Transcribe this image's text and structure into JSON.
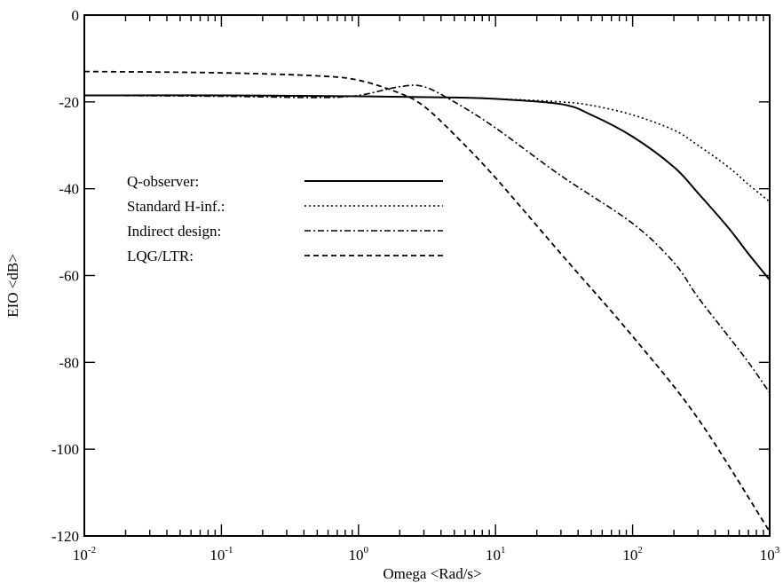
{
  "chart_data": {
    "type": "line",
    "xlabel": "Omega <Rad/s>",
    "ylabel": "EIO <dB>",
    "xscale": "log",
    "xlim": [
      0.01,
      1000
    ],
    "ylim": [
      -120,
      0
    ],
    "x_ticks": [
      {
        "base": "10",
        "exp": "-2",
        "value": 0.01
      },
      {
        "base": "10",
        "exp": "-1",
        "value": 0.1
      },
      {
        "base": "10",
        "exp": "0",
        "value": 1
      },
      {
        "base": "10",
        "exp": "1",
        "value": 10
      },
      {
        "base": "10",
        "exp": "2",
        "value": 100
      },
      {
        "base": "10",
        "exp": "3",
        "value": 1000
      }
    ],
    "y_ticks": [
      "0",
      "-20",
      "-40",
      "-60",
      "-80",
      "-100",
      "-120"
    ],
    "y_tick_values": [
      0,
      -20,
      -40,
      -60,
      -80,
      -100,
      -120
    ],
    "grid": false,
    "legend_position": "center-left",
    "series": [
      {
        "name": "Q-observer:",
        "style": "solid",
        "x": [
          0.01,
          0.1,
          1,
          5,
          10,
          30,
          50,
          100,
          200,
          300,
          500,
          700,
          1000
        ],
        "y": [
          -18.5,
          -18.5,
          -18.7,
          -19,
          -19.3,
          -20.5,
          -23,
          -28,
          -35,
          -41,
          -49,
          -55,
          -61
        ]
      },
      {
        "name": "Standard H-inf.:",
        "style": "dotted",
        "x": [
          0.01,
          0.1,
          1,
          5,
          10,
          30,
          50,
          100,
          200,
          300,
          500,
          700,
          1000
        ],
        "y": [
          -18.5,
          -18.5,
          -18.7,
          -19,
          -19.3,
          -20,
          -20.8,
          -23,
          -26.5,
          -30,
          -35,
          -39,
          -43
        ]
      },
      {
        "name": "Indirect design:",
        "style": "dashdot",
        "x": [
          0.01,
          0.1,
          0.5,
          1,
          2,
          3,
          5,
          10,
          30,
          100,
          200,
          300,
          500,
          700,
          1000
        ],
        "y": [
          -18.5,
          -18.7,
          -19,
          -18.5,
          -16.5,
          -16.5,
          -20,
          -26,
          -37,
          -48,
          -57,
          -65,
          -74,
          -80,
          -87
        ]
      },
      {
        "name": "LQG/LTR:",
        "style": "dashed",
        "x": [
          0.01,
          0.1,
          0.5,
          1,
          2,
          3,
          5,
          10,
          30,
          100,
          300,
          1000
        ],
        "y": [
          -13,
          -13.3,
          -14,
          -15,
          -18,
          -21,
          -27.5,
          -37.5,
          -55,
          -74,
          -93,
          -119
        ]
      }
    ]
  }
}
